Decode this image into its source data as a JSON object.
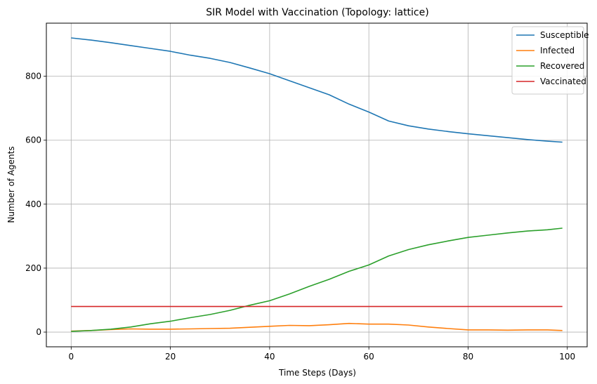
{
  "chart_data": {
    "type": "line",
    "title": "SIR Model with Vaccination (Topology: lattice)",
    "xlabel": "Time Steps (Days)",
    "ylabel": "Number of Agents",
    "xlim": [
      -5,
      104
    ],
    "ylim": [
      -46,
      966
    ],
    "xticks": [
      0,
      20,
      40,
      60,
      80,
      100
    ],
    "yticks": [
      0,
      200,
      400,
      600,
      800
    ],
    "grid": true,
    "legend_position": "top-right",
    "x": [
      0,
      4,
      8,
      12,
      16,
      20,
      24,
      28,
      32,
      36,
      40,
      44,
      48,
      52,
      56,
      60,
      64,
      68,
      72,
      76,
      80,
      84,
      88,
      92,
      96,
      99
    ],
    "series": [
      {
        "name": "Susceptible",
        "color": "#1f77b4",
        "values": [
          920,
          913,
          905,
          896,
          887,
          878,
          866,
          856,
          843,
          826,
          808,
          786,
          764,
          742,
          713,
          688,
          660,
          645,
          635,
          627,
          620,
          614,
          608,
          602,
          597,
          594
        ]
      },
      {
        "name": "Infected",
        "color": "#ff7f0e",
        "values": [
          3,
          5,
          8,
          10,
          9,
          9,
          10,
          11,
          12,
          15,
          18,
          21,
          20,
          23,
          27,
          25,
          25,
          22,
          16,
          11,
          7,
          7,
          6,
          7,
          7,
          5
        ]
      },
      {
        "name": "Recovered",
        "color": "#2ca02c",
        "values": [
          2,
          5,
          9,
          16,
          26,
          34,
          45,
          55,
          68,
          84,
          98,
          119,
          143,
          165,
          190,
          210,
          238,
          258,
          273,
          285,
          296,
          303,
          310,
          316,
          320,
          325
        ]
      },
      {
        "name": "Vaccinated",
        "color": "#d62728",
        "values": [
          80,
          80,
          80,
          80,
          80,
          80,
          80,
          80,
          80,
          80,
          80,
          80,
          80,
          80,
          80,
          80,
          80,
          80,
          80,
          80,
          80,
          80,
          80,
          80,
          80,
          80
        ]
      }
    ]
  }
}
